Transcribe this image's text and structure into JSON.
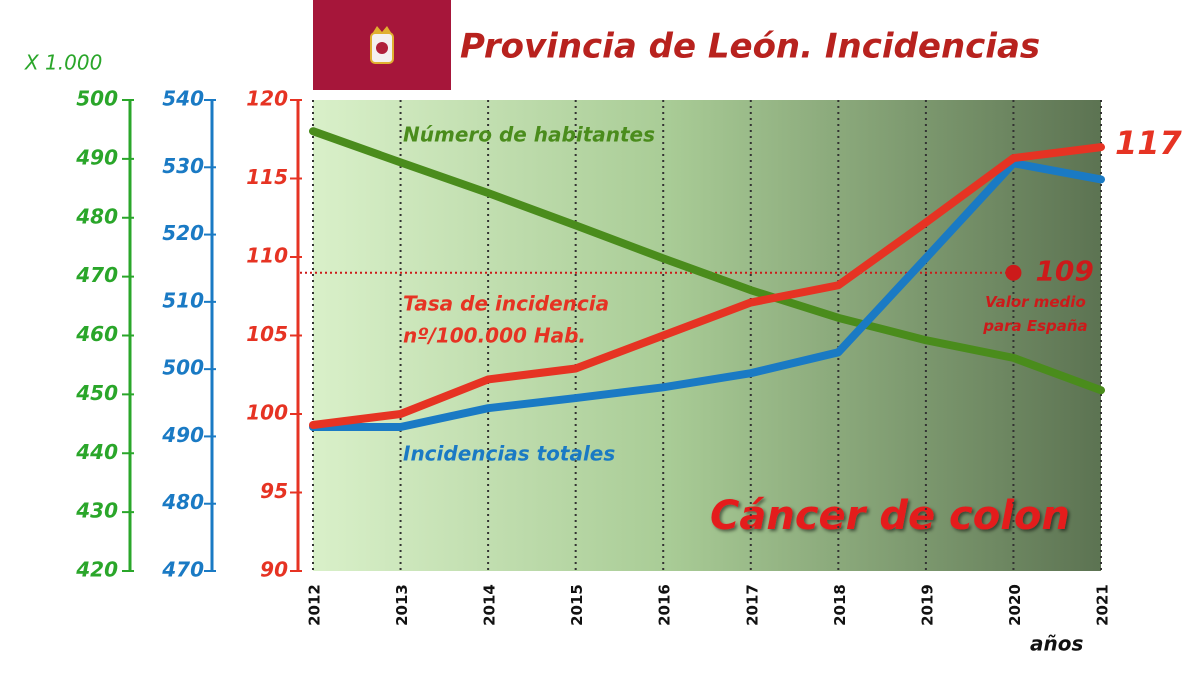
{
  "chart_data": {
    "type": "line",
    "title": "Provincia de León. Incidencias",
    "subtitle": "Cáncer de colon",
    "y3_unit": "X 1.000",
    "x_label": "años",
    "categories": [
      "2012",
      "2013",
      "2014",
      "2015",
      "2016",
      "2017",
      "2018",
      "2019",
      "2020",
      "2021"
    ],
    "series": [
      {
        "name": "Tasa de incidencia",
        "unit": "nº/100.000 Hab.",
        "color": "#e63323",
        "axis": "y",
        "values": [
          99.3,
          100.0,
          102.2,
          102.9,
          105.0,
          107.1,
          108.2,
          112.2,
          116.3,
          117
        ]
      },
      {
        "name": "Incidencias totales",
        "color": "#1a7ac4",
        "axis": "y2",
        "values": [
          491.4,
          491.4,
          494.2,
          495.7,
          497.3,
          499.4,
          502.5,
          516.5,
          530.6,
          528.2
        ]
      },
      {
        "name": "Número de habitantes",
        "color": "#4a8c1c",
        "axis": "y3",
        "values": [
          494.7,
          489.4,
          484.2,
          478.7,
          473.1,
          467.7,
          463.0,
          459.2,
          456.2,
          450.7
        ]
      }
    ],
    "last_value_label_series": 0,
    "reference_line": {
      "value": 109,
      "x": "2020",
      "note": [
        "Valor medio",
        "para España"
      ],
      "color": "#cc1a1a"
    },
    "ylim": [
      90,
      120
    ],
    "yticks": [
      90,
      95,
      100,
      105,
      110,
      115,
      120
    ],
    "y_color": "#e63323",
    "y2lim": [
      470,
      540
    ],
    "y2ticks": [
      470,
      480,
      490,
      500,
      510,
      520,
      530,
      540
    ],
    "y2_color": "#1a7ac4",
    "y3lim": [
      420,
      500
    ],
    "y3ticks": [
      420,
      430,
      440,
      450,
      460,
      470,
      480,
      490,
      500
    ],
    "y3_color": "#2aa62a",
    "grid": true
  }
}
